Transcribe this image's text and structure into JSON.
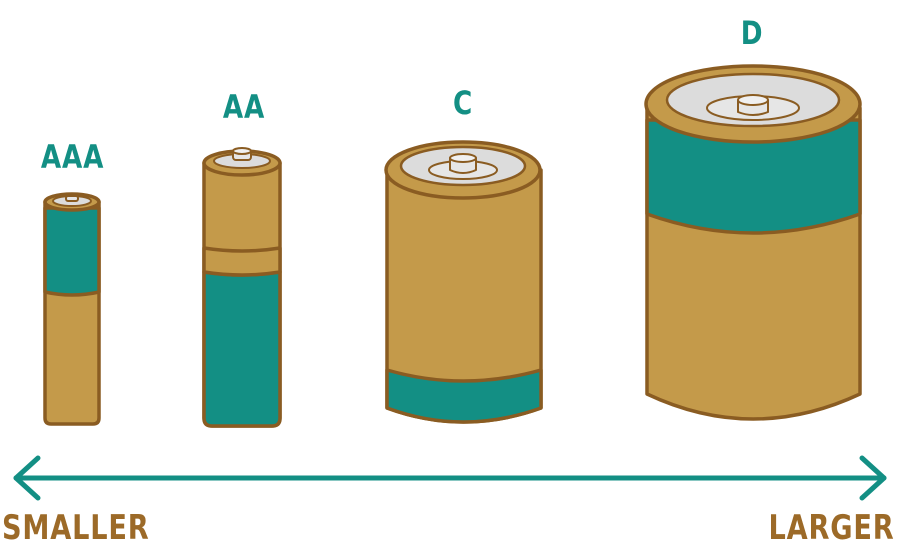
{
  "batteries": [
    {
      "label": "AAA"
    },
    {
      "label": "AA"
    },
    {
      "label": "C"
    },
    {
      "label": "D"
    }
  ],
  "scale": {
    "left_label": "SMALLER",
    "right_label": "LARGER"
  },
  "colors": {
    "teal": "#138f84",
    "gold": "#c49a4a",
    "outline": "#8a5c22",
    "cap": "#dcdcdc",
    "text_brown": "#9c6a28"
  }
}
